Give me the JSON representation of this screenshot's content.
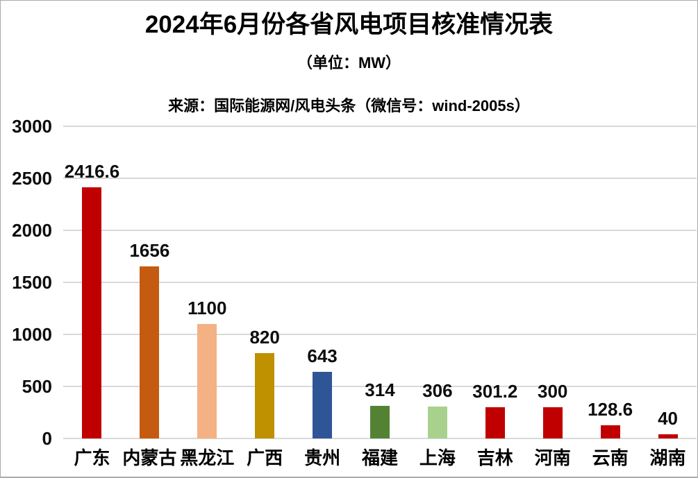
{
  "page": {
    "title": "2024年6月份各省风电项目核准情况表",
    "subtitle": "（单位：MW）",
    "source": "来源：国际能源网/风电头条（微信号：wind-2005s）"
  },
  "chart_data": {
    "type": "bar",
    "title": "2024年6月份各省风电项目核准情况表",
    "subtitle": "（单位：MW）",
    "source": "来源：国际能源网/风电头条（微信号：wind-2005s）",
    "unit": "MW",
    "categories": [
      "广东",
      "内蒙古",
      "黑龙江",
      "广西",
      "贵州",
      "福建",
      "上海",
      "吉林",
      "河南",
      "云南",
      "湖南"
    ],
    "values": [
      2416.6,
      1656,
      1100,
      820,
      643,
      314,
      306,
      301.2,
      300,
      128.6,
      40
    ],
    "value_labels": [
      "2416.6",
      "1656",
      "1100",
      "820",
      "643",
      "314",
      "306",
      "301.2",
      "300",
      "128.6",
      "40"
    ],
    "bar_colors": [
      "#c00000",
      "#c55a11",
      "#f4b183",
      "#bf9000",
      "#2f5597",
      "#548235",
      "#a9d18e",
      "#c00000",
      "#c00000",
      "#c00000",
      "#c00000"
    ],
    "xlabel": "",
    "ylabel": "",
    "ylim": [
      0,
      3000
    ],
    "yticks": [
      0,
      500,
      1000,
      1500,
      2000,
      2500,
      3000
    ],
    "grid": true,
    "legend": false,
    "gridline_color": "#d9d9d9",
    "text_color": "#000000",
    "background_color": "#ffffff"
  }
}
